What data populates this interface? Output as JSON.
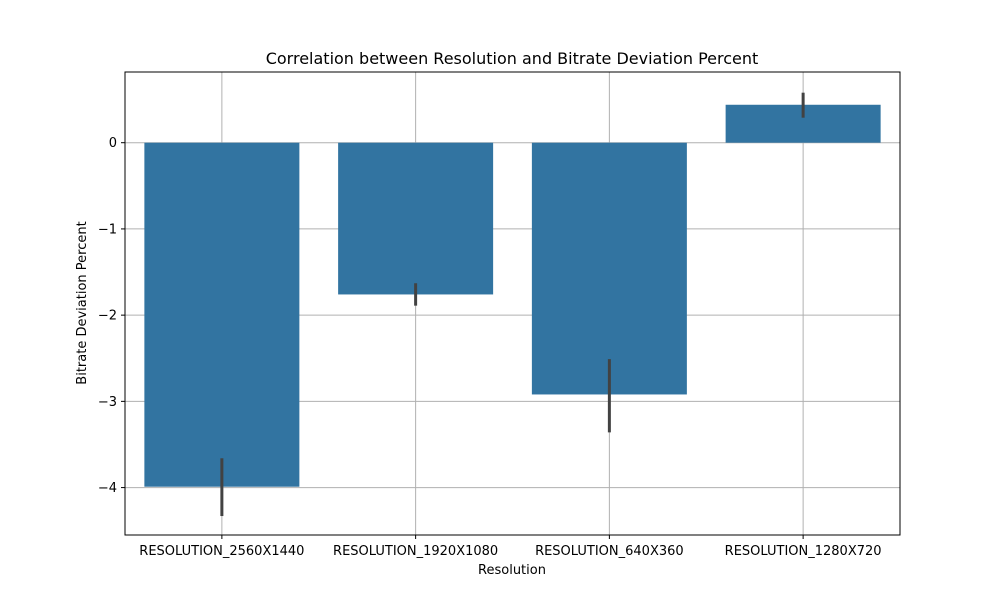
{
  "chart_data": {
    "type": "bar",
    "title": "Correlation between Resolution and Bitrate Deviation Percent",
    "xlabel": "Resolution",
    "ylabel": "Bitrate Deviation Percent",
    "categories": [
      "RESOLUTION_2560X1440",
      "RESOLUTION_1920X1080",
      "RESOLUTION_640X360",
      "RESOLUTION_1280X720"
    ],
    "values": [
      -3.99,
      -1.76,
      -2.92,
      0.44
    ],
    "error_bars": [
      [
        -4.33,
        -3.66
      ],
      [
        -1.89,
        -1.63
      ],
      [
        -3.36,
        -2.51
      ],
      [
        0.29,
        0.58
      ]
    ],
    "ylim": [
      -4.55,
      0.82
    ],
    "yticks": [
      0,
      -1,
      -2,
      -3,
      -4
    ],
    "ytick_labels": [
      "0",
      "−1",
      "−2",
      "−3",
      "−4"
    ],
    "grid": true,
    "bar_color": "#3274a1",
    "error_color": "#424242"
  }
}
